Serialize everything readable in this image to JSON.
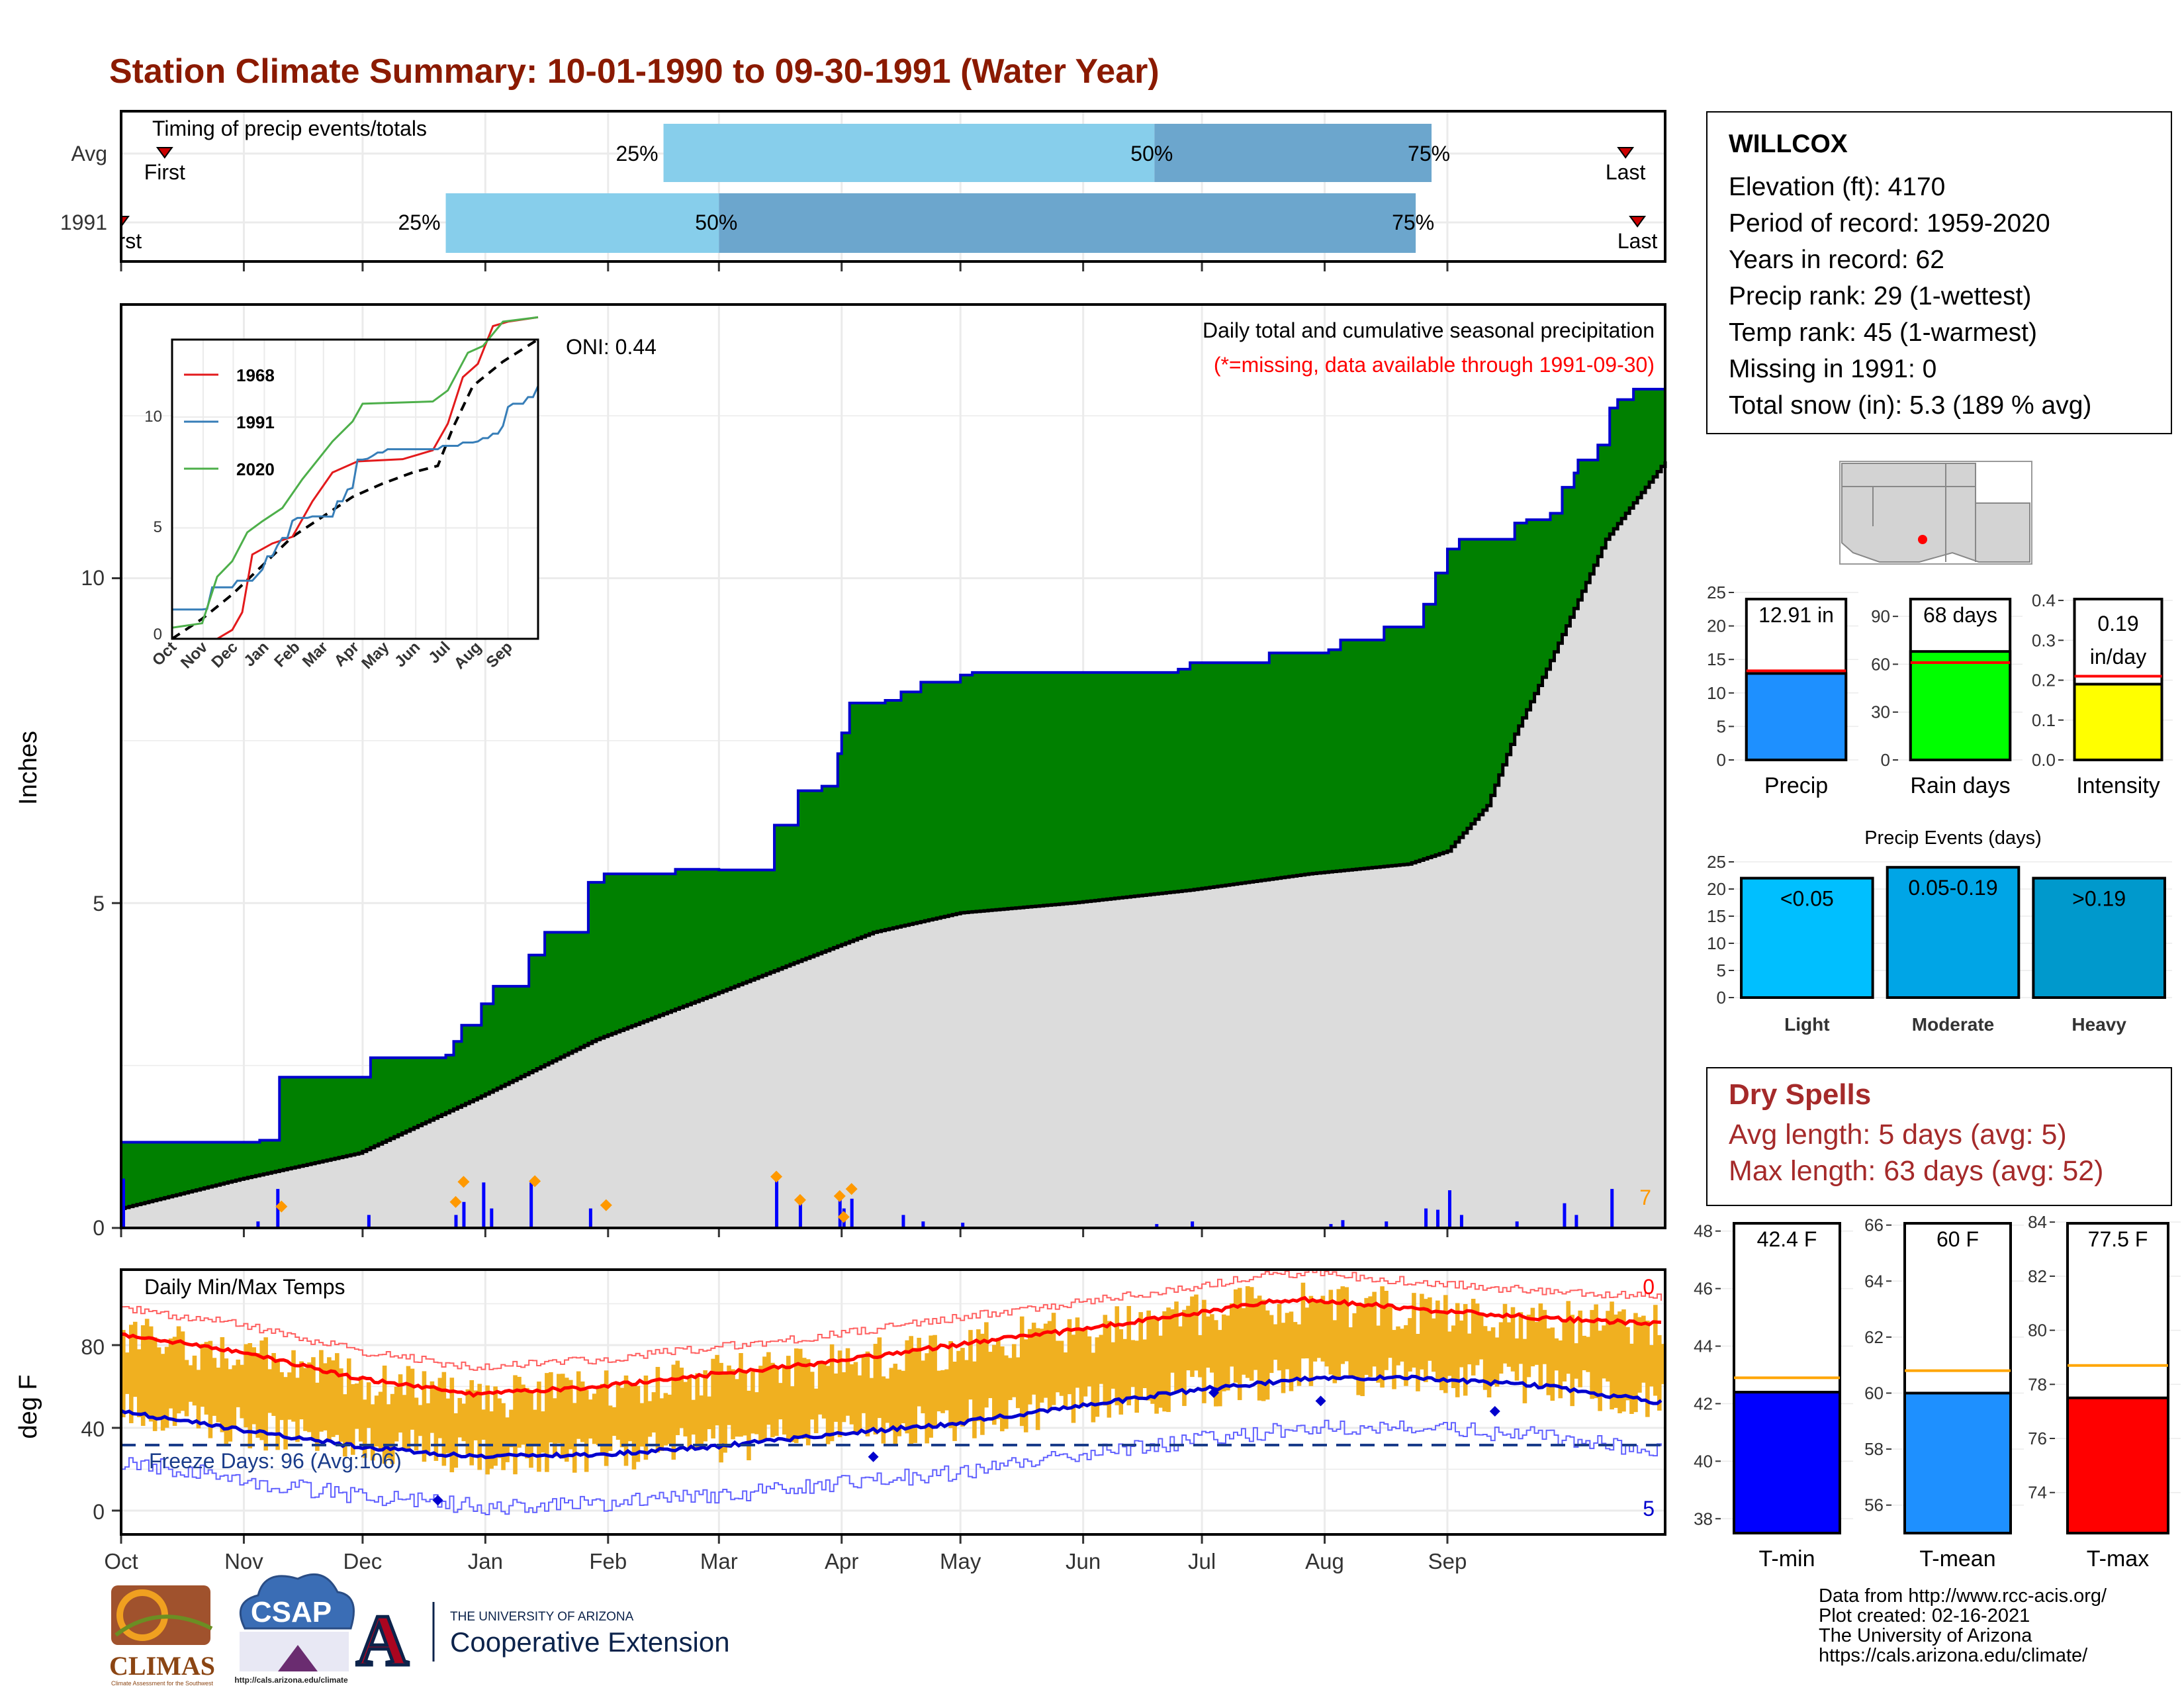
{
  "title": "Station Climate Summary: 10-01-1990 to 09-30-1991 (Water Year)",
  "colors": {
    "title": "#8b1a00",
    "cumulative_fill": "#008000",
    "cumulative_line": "#0000cd",
    "avg_fill": "#dcdcdc",
    "daily_bar": "#0000ff",
    "temp_bar": "#f0b020",
    "tmax_avg": "#ff0000",
    "tmin_avg": "#0000cd",
    "timing_light": "#87ceeb",
    "timing_dark": "#6ca6cd",
    "dry_spells": "#a52a2a"
  },
  "timing": {
    "label": "Timing of precip events/totals",
    "rows": [
      {
        "name": "Avg",
        "first_label": "First",
        "last_label": "Last",
        "pct25_label": "25%",
        "pct50_label": "50%",
        "pct75_label": "75%",
        "first_day": 11,
        "p25_day": 137,
        "p50_day": 261,
        "p75_day": 331,
        "last_day": 380
      },
      {
        "name": "1991",
        "first_label": "First",
        "last_label": "Last",
        "pct25_label": "25%",
        "pct50_label": "50%",
        "pct75_label": "75%",
        "first_day": 0,
        "p25_day": 82,
        "p50_day": 151,
        "p75_day": 327,
        "last_day": 383
      }
    ]
  },
  "precip_panel": {
    "subtitle": "Daily total and cumulative seasonal precipitation",
    "note": "(*=missing, data available through 1991-09-30)",
    "oni": "ONI: 0.44",
    "ylabel": "Inches",
    "yticks": [
      "0",
      "5",
      "10"
    ],
    "count_label": "7"
  },
  "inset": {
    "legend": [
      "1968",
      "1991",
      "2020"
    ],
    "legend_colors": [
      "#e31a1c",
      "#377eb8",
      "#4daf4a"
    ],
    "yticks": [
      "0",
      "5",
      "10"
    ],
    "xticks": [
      "Oct",
      "Nov",
      "Dec",
      "Jan",
      "Feb",
      "Mar",
      "Apr",
      "May",
      "Jun",
      "Jul",
      "Aug",
      "Sep"
    ]
  },
  "temp_panel": {
    "label": "Daily Min/Max Temps",
    "ylabel": "deg F",
    "yticks": [
      "0",
      "40",
      "80"
    ],
    "freeze_label": "Freeze Days: 96 (Avg:106)",
    "count_top": "0",
    "count_bottom": "5"
  },
  "months": [
    "Oct",
    "Nov",
    "Dec",
    "Jan",
    "Feb",
    "Mar",
    "Apr",
    "May",
    "Jun",
    "Jul",
    "Aug",
    "Sep"
  ],
  "station": {
    "name": "WILLCOX",
    "lines": [
      "Elevation (ft): 4170",
      "Period of record: 1959-2020",
      "Years in record: 62",
      "Precip rank: 29 (1-wettest)",
      "Temp rank: 45 (1-warmest)",
      "Missing in 1991: 0",
      "Total snow (in): 5.3 (189 % avg)"
    ]
  },
  "mini_bars": [
    {
      "name": "Precip",
      "value": 12.91,
      "label": "12.91 in",
      "avg": 13.3,
      "ymin": 0,
      "ymax": 25,
      "ticks": [
        "0",
        "5",
        "10",
        "15",
        "20",
        "25"
      ],
      "tickvals": [
        0,
        5,
        10,
        15,
        20,
        25
      ],
      "color": "#1e90ff"
    },
    {
      "name": "Rain days",
      "value": 68,
      "label": "68 days",
      "avg": 61,
      "ymin": 0,
      "ymax": 105,
      "ticks": [
        "0",
        "30",
        "60",
        "90"
      ],
      "tickvals": [
        0,
        30,
        60,
        90
      ],
      "color": "#00ff00"
    },
    {
      "name": "Intensity",
      "value": 0.19,
      "label": "0.19 in/day",
      "label_line1": "0.19",
      "label_line2": "in/day",
      "avg": 0.21,
      "ymin": 0,
      "ymax": 0.42,
      "ticks": [
        "0.0",
        "0.1",
        "0.2",
        "0.3",
        "0.4"
      ],
      "tickvals": [
        0,
        0.1,
        0.2,
        0.3,
        0.4
      ],
      "color": "#ffff00"
    }
  ],
  "precip_events": {
    "title": "Precip Events (days)",
    "yticks": [
      "0",
      "5",
      "10",
      "15",
      "20",
      "25"
    ],
    "bars": [
      {
        "category": "Light",
        "label": "<0.05",
        "value": 22,
        "color": "#00bfff"
      },
      {
        "category": "Moderate",
        "label": "0.05-0.19",
        "value": 24,
        "color": "#00a5e6"
      },
      {
        "category": "Heavy",
        "label": ">0.19",
        "value": 22,
        "color": "#0099cc"
      }
    ]
  },
  "dry_spells": {
    "title": "Dry Spells",
    "avg_length": "Avg length: 5 days (avg: 5)",
    "max_length": "Max length: 63 days (avg: 52)"
  },
  "temp_bars": [
    {
      "name": "T-min",
      "value": 42.4,
      "label": "42.4 F",
      "avg": 42.9,
      "ymin": 37.5,
      "ymax": 48.5,
      "ticks": [
        "38",
        "40",
        "42",
        "44",
        "46",
        "48"
      ],
      "tickvals": [
        38,
        40,
        42,
        44,
        46,
        48
      ],
      "color": "#0000ff"
    },
    {
      "name": "T-mean",
      "value": 60,
      "label": "60 F",
      "avg": 60.8,
      "ymin": 55,
      "ymax": 66.3,
      "ticks": [
        "56",
        "58",
        "60",
        "62",
        "64",
        "66"
      ],
      "tickvals": [
        56,
        58,
        60,
        62,
        64,
        66
      ],
      "color": "#1e90ff"
    },
    {
      "name": "T-max",
      "value": 77.5,
      "label": "77.5 F",
      "avg": 78.7,
      "ymin": 72.5,
      "ymax": 84.2,
      "ticks": [
        "74",
        "76",
        "78",
        "80",
        "82",
        "84"
      ],
      "tickvals": [
        74,
        76,
        78,
        80,
        82,
        84
      ],
      "color": "#ff0000"
    }
  ],
  "footer": [
    "Data from http://www.rcc-acis.org/",
    "Plot created: 02-16-2021",
    "The University of Arizona",
    "https://cals.arizona.edu/climate/"
  ],
  "logos": {
    "climas": "CLIMAS",
    "climas_sub": "Climate Assessment for the Southwest",
    "csap": "CSAP",
    "csap_url": "http://cals.arizona.edu/climate",
    "ua_letter": "A",
    "ua_small": "THE UNIVERSITY OF ARIZONA",
    "ua_big": "Cooperative Extension"
  },
  "chart_data": [
    {
      "type": "area",
      "title": "Daily total and cumulative seasonal precipitation",
      "ylabel": "Inches",
      "ylim": [
        0,
        14.2
      ],
      "x_unit": "day of water year (0 = Oct 1, 1990)",
      "series": [
        {
          "name": "cumulative precipitation",
          "steps": [
            [
              0,
              1.32
            ],
            [
              35,
              1.35
            ],
            [
              40,
              2.32
            ],
            [
              62,
              2.32
            ],
            [
              63,
              2.62
            ],
            [
              82,
              2.66
            ],
            [
              84,
              2.87
            ],
            [
              86,
              3.12
            ],
            [
              91,
              3.45
            ],
            [
              94,
              3.72
            ],
            [
              103,
              4.2
            ],
            [
              107,
              4.55
            ],
            [
              118,
              5.32
            ],
            [
              122,
              5.45
            ],
            [
              140,
              5.52
            ],
            [
              151,
              5.51
            ],
            [
              165,
              6.2
            ],
            [
              171,
              6.73
            ],
            [
              177,
              6.8
            ],
            [
              181,
              7.3
            ],
            [
              182,
              7.62
            ],
            [
              184,
              8.08
            ],
            [
              193,
              8.12
            ],
            [
              197,
              8.25
            ],
            [
              202,
              8.4
            ],
            [
              212,
              8.51
            ],
            [
              215,
              8.55
            ],
            [
              261,
              8.55
            ],
            [
              267,
              8.6
            ],
            [
              270,
              8.7
            ],
            [
              290,
              8.85
            ],
            [
              305,
              8.9
            ],
            [
              308,
              9.05
            ],
            [
              319,
              9.25
            ],
            [
              329,
              9.6
            ],
            [
              332,
              10.08
            ],
            [
              335,
              10.45
            ],
            [
              338,
              10.6
            ],
            [
              352,
              10.85
            ],
            [
              355,
              10.9
            ],
            [
              361,
              11.0
            ],
            [
              364,
              11.4
            ],
            [
              367,
              11.62
            ],
            [
              368,
              11.82
            ],
            [
              373,
              12.05
            ],
            [
              376,
              12.62
            ],
            [
              378,
              12.75
            ],
            [
              382,
              12.91
            ],
            [
              390,
              12.91
            ]
          ]
        },
        {
          "name": "average cumulative",
          "points": [
            [
              0,
              0.3
            ],
            [
              30,
              0.75
            ],
            [
              60,
              1.15
            ],
            [
              90,
              2.0
            ],
            [
              120,
              2.9
            ],
            [
              150,
              3.6
            ],
            [
              170,
              4.08
            ],
            [
              190,
              4.55
            ],
            [
              212,
              4.85
            ],
            [
              240,
              5.0
            ],
            [
              270,
              5.2
            ],
            [
              300,
              5.45
            ],
            [
              325,
              5.6
            ],
            [
              335,
              5.8
            ],
            [
              345,
              6.5
            ],
            [
              352,
              7.6
            ],
            [
              360,
              8.6
            ],
            [
              375,
              10.6
            ],
            [
              390,
              11.8
            ]
          ]
        }
      ],
      "daily_precip": [
        [
          0,
          0.76
        ],
        [
          34,
          0.1
        ],
        [
          39,
          0.6
        ],
        [
          62,
          0.2
        ],
        [
          84,
          0.2
        ],
        [
          86,
          0.4
        ],
        [
          91,
          0.7
        ],
        [
          93,
          0.3
        ],
        [
          103,
          0.7
        ],
        [
          118,
          0.3
        ],
        [
          165,
          0.72
        ],
        [
          171,
          0.4
        ],
        [
          181,
          0.55
        ],
        [
          182,
          0.3
        ],
        [
          184,
          0.45
        ],
        [
          197,
          0.2
        ],
        [
          202,
          0.1
        ],
        [
          212,
          0.08
        ],
        [
          261,
          0.06
        ],
        [
          270,
          0.1
        ],
        [
          305,
          0.06
        ],
        [
          308,
          0.12
        ],
        [
          319,
          0.1
        ],
        [
          329,
          0.3
        ],
        [
          332,
          0.28
        ],
        [
          335,
          0.58
        ],
        [
          338,
          0.2
        ],
        [
          352,
          0.1
        ],
        [
          364,
          0.38
        ],
        [
          367,
          0.2
        ],
        [
          376,
          0.6
        ]
      ],
      "snow_markers": [
        [
          40,
          0.33
        ],
        [
          84,
          0.4
        ],
        [
          86,
          0.71
        ],
        [
          104,
          0.72
        ],
        [
          122,
          0.35
        ],
        [
          165,
          0.79
        ],
        [
          171,
          0.43
        ],
        [
          181,
          0.49
        ],
        [
          182,
          0.17
        ],
        [
          184,
          0.6
        ]
      ]
    },
    {
      "type": "bar",
      "title": "Daily Min/Max Temps",
      "ylabel": "deg F",
      "ylim": [
        -8,
        112
      ],
      "series": [
        {
          "name": "avg max",
          "points": [
            [
              0,
              85
            ],
            [
              30,
              77
            ],
            [
              60,
              64
            ],
            [
              90,
              56
            ],
            [
              120,
              60
            ],
            [
              150,
              66
            ],
            [
              180,
              72
            ],
            [
              210,
              80
            ],
            [
              240,
              87
            ],
            [
              270,
              95
            ],
            [
              290,
              101
            ],
            [
              300,
              102
            ],
            [
              330,
              97
            ],
            [
              360,
              93
            ],
            [
              390,
              90
            ]
          ]
        },
        {
          "name": "avg min",
          "points": [
            [
              0,
              48
            ],
            [
              30,
              39
            ],
            [
              60,
              31
            ],
            [
              90,
              26
            ],
            [
              120,
              27
            ],
            [
              150,
              31
            ],
            [
              180,
              37
            ],
            [
              210,
              42
            ],
            [
              240,
              50
            ],
            [
              270,
              58
            ],
            [
              290,
              62
            ],
            [
              300,
              64
            ],
            [
              330,
              64
            ],
            [
              360,
              60
            ],
            [
              390,
              52
            ]
          ]
        }
      ],
      "freeze_line": 32
    }
  ]
}
